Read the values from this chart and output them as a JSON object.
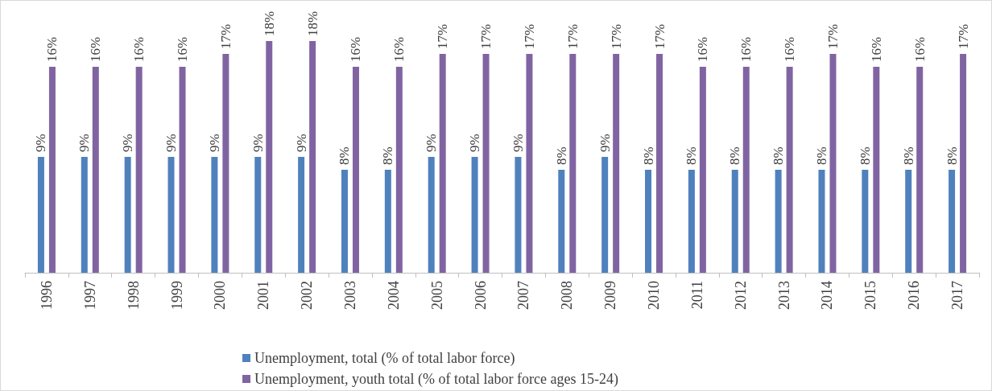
{
  "chart_data": {
    "type": "bar",
    "categories": [
      "1996",
      "1997",
      "1998",
      "1999",
      "2000",
      "2001",
      "2002",
      "2003",
      "2004",
      "2005",
      "2006",
      "2007",
      "2008",
      "2009",
      "2010",
      "2011",
      "2012",
      "2013",
      "2014",
      "2015",
      "2016",
      "2017"
    ],
    "series": [
      {
        "name": "Unemployment, total (% of total labor force)",
        "color": "#4f81bd",
        "values": [
          9,
          9,
          9,
          9,
          9,
          9,
          9,
          8,
          8,
          9,
          9,
          9,
          8,
          9,
          8,
          8,
          8,
          8,
          8,
          8,
          8,
          8
        ],
        "value_labels": [
          "9%",
          "9%",
          "9%",
          "9%",
          "9%",
          "9%",
          "9%",
          "8%",
          "8%",
          "9%",
          "9%",
          "9%",
          "8%",
          "9%",
          "8%",
          "8%",
          "8%",
          "8%",
          "8%",
          "8%",
          "8%",
          "8%"
        ]
      },
      {
        "name": "Unemployment, youth total (% of total labor force ages 15-24)",
        "color": "#8064a2",
        "values": [
          16,
          16,
          16,
          16,
          17,
          18,
          18,
          16,
          16,
          17,
          17,
          17,
          17,
          17,
          17,
          16,
          16,
          16,
          17,
          16,
          16,
          17
        ],
        "value_labels": [
          "16%",
          "16%",
          "16%",
          "16%",
          "17%",
          "18%",
          "18%",
          "16%",
          "16%",
          "17%",
          "17%",
          "17%",
          "17%",
          "17%",
          "17%",
          "16%",
          "16%",
          "16%",
          "17%",
          "16%",
          "16%",
          "17%"
        ]
      }
    ],
    "grid": false,
    "legend": "bottom"
  }
}
